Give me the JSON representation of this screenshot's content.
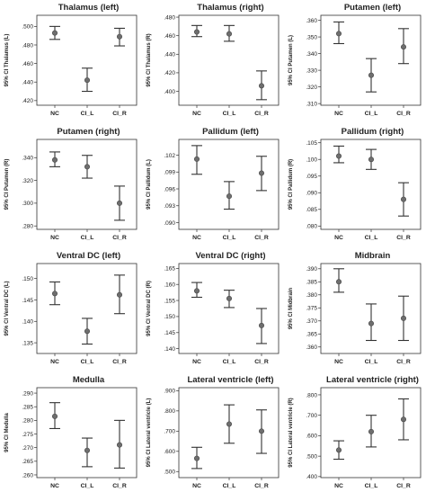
{
  "chart_data": [
    {
      "type": "errorbar",
      "title": "Thalamus (left)",
      "ylabel": "95% CI Thalamus (L)",
      "categories": [
        "NC",
        "CI_L",
        "CI_R"
      ],
      "ylim": [
        0.415,
        0.512
      ],
      "yticks": [
        0.42,
        0.44,
        0.46,
        0.48,
        0.5
      ],
      "ytick_labels": [
        ".420",
        ".440",
        ".460",
        ".480",
        ".500"
      ],
      "mean": [
        0.493,
        0.442,
        0.489
      ],
      "lower": [
        0.486,
        0.43,
        0.479
      ],
      "upper": [
        0.5,
        0.455,
        0.498
      ]
    },
    {
      "type": "errorbar",
      "title": "Thalamus (right)",
      "ylabel": "95% CI Thalamus (R)",
      "categories": [
        "NC",
        "CI_L",
        "CI_R"
      ],
      "ylim": [
        0.385,
        0.482
      ],
      "yticks": [
        0.38,
        0.4,
        0.42,
        0.44,
        0.46,
        0.48
      ],
      "ytick_labels": [
        ".380",
        ".400",
        ".420",
        ".440",
        ".460",
        ".480"
      ],
      "mean": [
        0.464,
        0.462,
        0.406
      ],
      "lower": [
        0.459,
        0.454,
        0.391
      ],
      "upper": [
        0.471,
        0.471,
        0.422
      ]
    },
    {
      "type": "errorbar",
      "title": "Putamen (left)",
      "ylabel": "95% CI Putamen (L)",
      "categories": [
        "NC",
        "CI_L",
        "CI_R"
      ],
      "ylim": [
        0.309,
        0.363
      ],
      "yticks": [
        0.31,
        0.32,
        0.33,
        0.34,
        0.35,
        0.36
      ],
      "ytick_labels": [
        ".310",
        ".320",
        ".330",
        ".340",
        ".350",
        ".360"
      ],
      "mean": [
        0.352,
        0.327,
        0.344
      ],
      "lower": [
        0.346,
        0.317,
        0.334
      ],
      "upper": [
        0.359,
        0.337,
        0.355
      ]
    },
    {
      "type": "errorbar",
      "title": "Putamen (right)",
      "ylabel": "95% CI Putamen (R)",
      "categories": [
        "NC",
        "CI_L",
        "CI_R"
      ],
      "ylim": [
        0.277,
        0.356
      ],
      "yticks": [
        0.28,
        0.3,
        0.32,
        0.34
      ],
      "ytick_labels": [
        ".280",
        ".300",
        ".320",
        ".340"
      ],
      "mean": [
        0.338,
        0.332,
        0.3
      ],
      "lower": [
        0.332,
        0.322,
        0.285
      ],
      "upper": [
        0.345,
        0.342,
        0.315
      ]
    },
    {
      "type": "errorbar",
      "title": "Pallidum (left)",
      "ylabel": "95% CI Pallidum (L)",
      "categories": [
        "NC",
        "CI_L",
        "CI_R"
      ],
      "ylim": [
        0.0888,
        0.1048
      ],
      "yticks": [
        0.09,
        0.093,
        0.096,
        0.099,
        0.102
      ],
      "ytick_labels": [
        ".090",
        ".093",
        ".096",
        ".099",
        ".102"
      ],
      "mean": [
        0.1013,
        0.0947,
        0.0988
      ],
      "lower": [
        0.0986,
        0.0924,
        0.0957
      ],
      "upper": [
        0.1037,
        0.0973,
        0.1018
      ]
    },
    {
      "type": "errorbar",
      "title": "Pallidum (right)",
      "ylabel": "95% CI Pallidum (R)",
      "categories": [
        "NC",
        "CI_L",
        "CI_R"
      ],
      "ylim": [
        0.079,
        0.106
      ],
      "yticks": [
        0.08,
        0.085,
        0.09,
        0.095,
        0.1,
        0.105
      ],
      "ytick_labels": [
        ".080",
        ".085",
        ".090",
        ".095",
        ".100",
        ".105"
      ],
      "mean": [
        0.101,
        0.1,
        0.088
      ],
      "lower": [
        0.099,
        0.097,
        0.083
      ],
      "upper": [
        0.104,
        0.103,
        0.093
      ]
    },
    {
      "type": "errorbar",
      "title": "Ventral DC (left)",
      "ylabel": "95% CI Ventral DC (L)",
      "categories": [
        "NC",
        "CI_L",
        "CI_R"
      ],
      "ylim": [
        0.1325,
        0.1535
      ],
      "yticks": [
        0.135,
        0.14,
        0.145,
        0.15
      ],
      "ytick_labels": [
        ".135",
        ".140",
        ".145",
        ".150"
      ],
      "mean": [
        0.1465,
        0.1377,
        0.1462
      ],
      "lower": [
        0.1439,
        0.1347,
        0.1418
      ],
      "upper": [
        0.1492,
        0.1407,
        0.1508
      ]
    },
    {
      "type": "errorbar",
      "title": "Ventral DC (right)",
      "ylabel": "95% CI Ventral DC (R)",
      "categories": [
        "NC",
        "CI_L",
        "CI_R"
      ],
      "ylim": [
        0.1385,
        0.1665
      ],
      "yticks": [
        0.14,
        0.145,
        0.15,
        0.155,
        0.16,
        0.165
      ],
      "ytick_labels": [
        ".140",
        ".145",
        ".150",
        ".155",
        ".160",
        ".165"
      ],
      "mean": [
        0.158,
        0.1556,
        0.1472
      ],
      "lower": [
        0.156,
        0.1528,
        0.1416
      ],
      "upper": [
        0.1606,
        0.1582,
        0.1525
      ]
    },
    {
      "type": "errorbar",
      "title": "Midbrain",
      "ylabel": "95% CI Midbrain",
      "categories": [
        "NC",
        "CI_L",
        "CI_R"
      ],
      "ylim": [
        0.3575,
        0.392
      ],
      "yticks": [
        0.36,
        0.365,
        0.37,
        0.375,
        0.38,
        0.385,
        0.39
      ],
      "ytick_labels": [
        ".360",
        ".365",
        ".370",
        ".375",
        ".380",
        ".385",
        ".390"
      ],
      "mean": [
        0.385,
        0.369,
        0.371
      ],
      "lower": [
        0.381,
        0.3625,
        0.3625
      ],
      "upper": [
        0.39,
        0.3765,
        0.3795
      ]
    },
    {
      "type": "errorbar",
      "title": "Medulla",
      "ylabel": "95% CI Medulla",
      "categories": [
        "NC",
        "CI_L",
        "CI_R"
      ],
      "ylim": [
        0.259,
        0.292
      ],
      "yticks": [
        0.26,
        0.265,
        0.27,
        0.275,
        0.28,
        0.285,
        0.29
      ],
      "ytick_labels": [
        ".260",
        ".265",
        ".270",
        ".275",
        ".280",
        ".285",
        ".290"
      ],
      "mean": [
        0.2815,
        0.269,
        0.271
      ],
      "lower": [
        0.277,
        0.263,
        0.2625
      ],
      "upper": [
        0.2865,
        0.2735,
        0.28
      ]
    },
    {
      "type": "errorbar",
      "title": "Lateral ventricle (left)",
      "ylabel": "95% CI Lateral ventricle (L)",
      "categories": [
        "NC",
        "CI_L",
        "CI_R"
      ],
      "ylim": [
        0.47,
        0.915
      ],
      "yticks": [
        0.5,
        0.6,
        0.7,
        0.8,
        0.9
      ],
      "ytick_labels": [
        ".500",
        ".600",
        ".700",
        ".800",
        ".900"
      ],
      "mean": [
        0.565,
        0.735,
        0.7
      ],
      "lower": [
        0.515,
        0.64,
        0.59
      ],
      "upper": [
        0.62,
        0.83,
        0.805
      ]
    },
    {
      "type": "errorbar",
      "title": "Lateral ventricle (right)",
      "ylabel": "95% CI Lateral ventricle (R)",
      "categories": [
        "NC",
        "CI_L",
        "CI_R"
      ],
      "ylim": [
        0.395,
        0.835
      ],
      "yticks": [
        0.4,
        0.5,
        0.6,
        0.7,
        0.8
      ],
      "ytick_labels": [
        ".400",
        ".500",
        ".600",
        ".700",
        ".800"
      ],
      "mean": [
        0.53,
        0.62,
        0.68
      ],
      "lower": [
        0.485,
        0.545,
        0.58
      ],
      "upper": [
        0.575,
        0.7,
        0.78
      ]
    }
  ]
}
